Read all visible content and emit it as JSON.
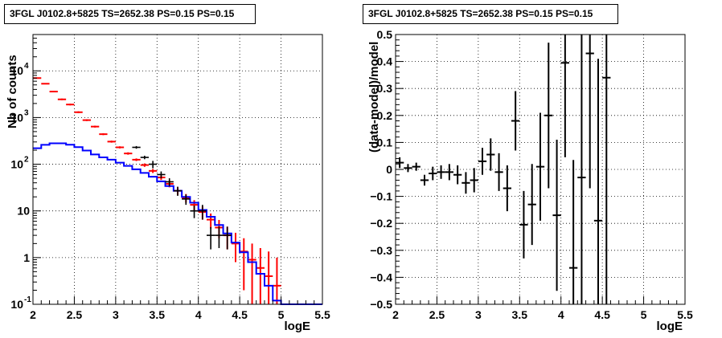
{
  "chart_data": [
    {
      "type": "histogram",
      "title": "3FGL J0102.8+5825 TS=2652.38 PS=0.15 PS=0.15",
      "xlabel": "logE",
      "ylabel": "Nb of counts",
      "xlim": [
        2,
        5.5
      ],
      "ylim": [
        0.1,
        60000
      ],
      "yscale": "log",
      "grid": true,
      "x_ticks": [
        "2",
        "2.5",
        "3",
        "3.5",
        "4",
        "4.5",
        "5",
        "5.5"
      ],
      "y_ticks": [
        {
          "v": 0.1,
          "base": "10",
          "exp": "-1"
        },
        {
          "v": 1,
          "base": "1",
          "exp": ""
        },
        {
          "v": 10,
          "base": "10",
          "exp": ""
        },
        {
          "v": 100,
          "base": "10",
          "exp": "2"
        },
        {
          "v": 1000,
          "base": "10",
          "exp": "3"
        },
        {
          "v": 10000,
          "base": "10",
          "exp": "4"
        }
      ],
      "bin_edges": [
        2.0,
        2.1,
        2.2,
        2.3,
        2.4,
        2.5,
        2.6,
        2.7,
        2.8,
        2.9,
        3.0,
        3.1,
        3.2,
        3.3,
        3.4,
        3.5,
        3.6,
        3.7,
        3.8,
        3.9,
        4.0,
        4.1,
        4.2,
        4.3,
        4.4,
        4.5,
        4.6,
        4.7,
        4.8,
        4.9,
        5.0,
        5.1,
        5.2,
        5.3,
        5.4,
        5.5
      ],
      "series": [
        {
          "color": "#ff0000",
          "bins": [
            {
              "x": 2.05,
              "y": 7000,
              "lo": 6800,
              "hi": 7200
            },
            {
              "x": 2.15,
              "y": 5300,
              "lo": 5150,
              "hi": 5450
            },
            {
              "x": 2.25,
              "y": 3600,
              "lo": 3480,
              "hi": 3720
            },
            {
              "x": 2.35,
              "y": 2450,
              "lo": 2350,
              "hi": 2550
            },
            {
              "x": 2.45,
              "y": 1900,
              "lo": 1820,
              "hi": 1980
            },
            {
              "x": 2.55,
              "y": 1300,
              "lo": 1240,
              "hi": 1360
            },
            {
              "x": 2.65,
              "y": 880,
              "lo": 840,
              "hi": 920
            },
            {
              "x": 2.75,
              "y": 640,
              "lo": 610,
              "hi": 670
            },
            {
              "x": 2.85,
              "y": 440,
              "lo": 420,
              "hi": 460
            },
            {
              "x": 2.95,
              "y": 305,
              "lo": 290,
              "hi": 320
            },
            {
              "x": 3.05,
              "y": 230,
              "lo": 218,
              "hi": 242
            },
            {
              "x": 3.15,
              "y": 170,
              "lo": 160,
              "hi": 180
            },
            {
              "x": 3.25,
              "y": 125,
              "lo": 117,
              "hi": 133
            },
            {
              "x": 3.35,
              "y": 96,
              "lo": 88,
              "hi": 104
            },
            {
              "x": 3.45,
              "y": 72,
              "lo": 65,
              "hi": 79
            },
            {
              "x": 3.55,
              "y": 52,
              "lo": 46,
              "hi": 58
            },
            {
              "x": 3.65,
              "y": 38,
              "lo": 32,
              "hi": 44
            },
            {
              "x": 3.75,
              "y": 27,
              "lo": 22,
              "hi": 32
            },
            {
              "x": 3.85,
              "y": 19,
              "lo": 15,
              "hi": 23
            },
            {
              "x": 3.95,
              "y": 13.5,
              "lo": 10,
              "hi": 17
            },
            {
              "x": 4.05,
              "y": 9.5,
              "lo": 6.5,
              "hi": 12.5
            },
            {
              "x": 4.15,
              "y": 6.5,
              "lo": 4.2,
              "hi": 8.8
            },
            {
              "x": 4.25,
              "y": 4.4,
              "lo": 2.6,
              "hi": 6.4
            },
            {
              "x": 4.35,
              "y": 3.0,
              "lo": 1.5,
              "hi": 4.6
            },
            {
              "x": 4.45,
              "y": 2.0,
              "lo": 0.8,
              "hi": 3.4
            },
            {
              "x": 4.55,
              "y": 1.35,
              "lo": 0.2,
              "hi": 2.6
            },
            {
              "x": 4.65,
              "y": 0.9,
              "lo": 0.1,
              "hi": 2.0
            },
            {
              "x": 4.75,
              "y": 0.6,
              "lo": 0.1,
              "hi": 1.6
            },
            {
              "x": 4.85,
              "y": 0.4,
              "lo": 0.1,
              "hi": 1.35
            },
            {
              "x": 4.95,
              "y": 0.25,
              "lo": 0.1,
              "hi": 1.0
            }
          ]
        },
        {
          "color": "#000000",
          "bins": [
            {
              "x": 3.25,
              "y": 230,
              "lo": 215,
              "hi": 245
            },
            {
              "x": 3.35,
              "y": 140,
              "lo": 128,
              "hi": 152
            },
            {
              "x": 3.45,
              "y": 100,
              "lo": 82,
              "hi": 118
            },
            {
              "x": 3.55,
              "y": 60,
              "lo": 50,
              "hi": 70
            },
            {
              "x": 3.65,
              "y": 42,
              "lo": 34,
              "hi": 50
            },
            {
              "x": 3.75,
              "y": 27,
              "lo": 21,
              "hi": 33
            },
            {
              "x": 3.85,
              "y": 18,
              "lo": 13.5,
              "hi": 22.5
            },
            {
              "x": 3.95,
              "y": 10,
              "lo": 7,
              "hi": 13
            },
            {
              "x": 4.05,
              "y": 10,
              "lo": 6.5,
              "hi": 13.5
            },
            {
              "x": 4.15,
              "y": 3,
              "lo": 1.5,
              "hi": 4.5
            },
            {
              "x": 4.25,
              "y": 3,
              "lo": 1.6,
              "hi": 4.6
            },
            {
              "x": 4.35,
              "y": 3,
              "lo": 1.5,
              "hi": 4.6
            }
          ]
        },
        {
          "color": "#0000ff",
          "step_values": [
            220,
            260,
            280,
            280,
            262,
            232,
            196,
            162,
            140,
            125,
            108,
            92,
            78,
            65,
            54,
            43,
            34,
            27,
            20,
            15,
            10.5,
            7.5,
            5.0,
            3.3,
            2.1,
            1.3,
            0.8,
            0.45,
            0.25,
            0.12,
            0.1,
            0.1,
            0.1,
            0.1,
            0.1
          ]
        }
      ]
    },
    {
      "type": "scatter",
      "title": "3FGL J0102.8+5825 TS=2652.38 PS=0.15 PS=0.15",
      "xlabel": "logE",
      "ylabel": "(data-model)/model",
      "xlim": [
        2,
        5.5
      ],
      "ylim": [
        -0.5,
        0.5
      ],
      "grid": true,
      "x_ticks": [
        "2",
        "2.5",
        "3",
        "3.5",
        "4",
        "4.5",
        "5",
        "5.5"
      ],
      "y_ticks": [
        "−0.5",
        "−0.4",
        "−0.3",
        "−0.2",
        "−0.1",
        "0",
        "0.1",
        "0.2",
        "0.3",
        "0.4",
        "0.5"
      ],
      "points": [
        {
          "x": 2.05,
          "y": 0.025,
          "err": 0.02
        },
        {
          "x": 2.15,
          "y": 0.005,
          "err": 0.015
        },
        {
          "x": 2.25,
          "y": 0.01,
          "err": 0.015
        },
        {
          "x": 2.35,
          "y": -0.04,
          "err": 0.02
        },
        {
          "x": 2.45,
          "y": -0.015,
          "err": 0.025
        },
        {
          "x": 2.55,
          "y": -0.01,
          "err": 0.025
        },
        {
          "x": 2.65,
          "y": -0.01,
          "err": 0.03
        },
        {
          "x": 2.75,
          "y": -0.02,
          "err": 0.035
        },
        {
          "x": 2.85,
          "y": -0.05,
          "err": 0.04
        },
        {
          "x": 2.95,
          "y": -0.04,
          "err": 0.045
        },
        {
          "x": 3.05,
          "y": 0.03,
          "err": 0.05
        },
        {
          "x": 3.15,
          "y": 0.055,
          "err": 0.06
        },
        {
          "x": 3.25,
          "y": -0.01,
          "err": 0.07
        },
        {
          "x": 3.35,
          "y": -0.07,
          "err": 0.085
        },
        {
          "x": 3.45,
          "y": 0.18,
          "err": 0.11
        },
        {
          "x": 3.55,
          "y": -0.205,
          "err": 0.125
        },
        {
          "x": 3.65,
          "y": -0.13,
          "err": 0.15
        },
        {
          "x": 3.75,
          "y": 0.01,
          "err": 0.2
        },
        {
          "x": 3.85,
          "y": 0.2,
          "err": 0.27
        },
        {
          "x": 3.95,
          "y": -0.17,
          "err": 0.28
        },
        {
          "x": 4.05,
          "y": 0.395,
          "err": 0.35
        },
        {
          "x": 4.15,
          "y": -0.365,
          "err": 0.4
        },
        {
          "x": 4.25,
          "y": -0.03,
          "err": 0.55
        },
        {
          "x": 4.35,
          "y": 0.43,
          "err": 0.5
        },
        {
          "x": 4.45,
          "y": -0.19,
          "err": 0.6
        },
        {
          "x": 4.55,
          "y": 0.34,
          "err": 0.9
        }
      ]
    }
  ]
}
